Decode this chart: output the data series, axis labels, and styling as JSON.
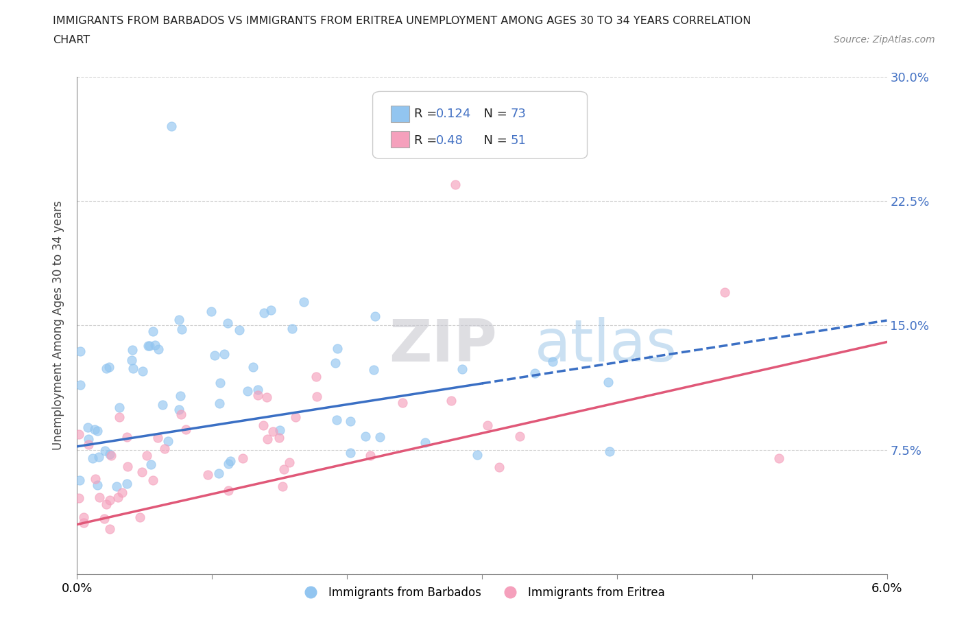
{
  "title_line1": "IMMIGRANTS FROM BARBADOS VS IMMIGRANTS FROM ERITREA UNEMPLOYMENT AMONG AGES 30 TO 34 YEARS CORRELATION",
  "title_line2": "CHART",
  "source_text": "Source: ZipAtlas.com",
  "ylabel": "Unemployment Among Ages 30 to 34 years",
  "xmin": 0.0,
  "xmax": 0.06,
  "ymin": 0.0,
  "ymax": 0.3,
  "y_ticks": [
    0.0,
    0.075,
    0.15,
    0.225,
    0.3
  ],
  "y_tick_labels": [
    "",
    "7.5%",
    "15.0%",
    "22.5%",
    "30.0%"
  ],
  "x_ticks": [
    0.0,
    0.01,
    0.02,
    0.03,
    0.04,
    0.05,
    0.06
  ],
  "x_tick_labels": [
    "0.0%",
    "",
    "",
    "",
    "",
    "",
    "6.0%"
  ],
  "barbados_color": "#92C5F0",
  "eritrea_color": "#F5A0BC",
  "barbados_line_color": "#3A6FC4",
  "eritrea_line_color": "#E05878",
  "barbados_R": 0.124,
  "barbados_N": 73,
  "eritrea_R": 0.48,
  "eritrea_N": 51,
  "watermark_zip": "ZIP",
  "watermark_atlas": "atlas",
  "grid_color": "#CCCCCC",
  "background_color": "#FFFFFF",
  "tick_label_color": "#4472C4",
  "legend_rn_color": "#4472C4"
}
